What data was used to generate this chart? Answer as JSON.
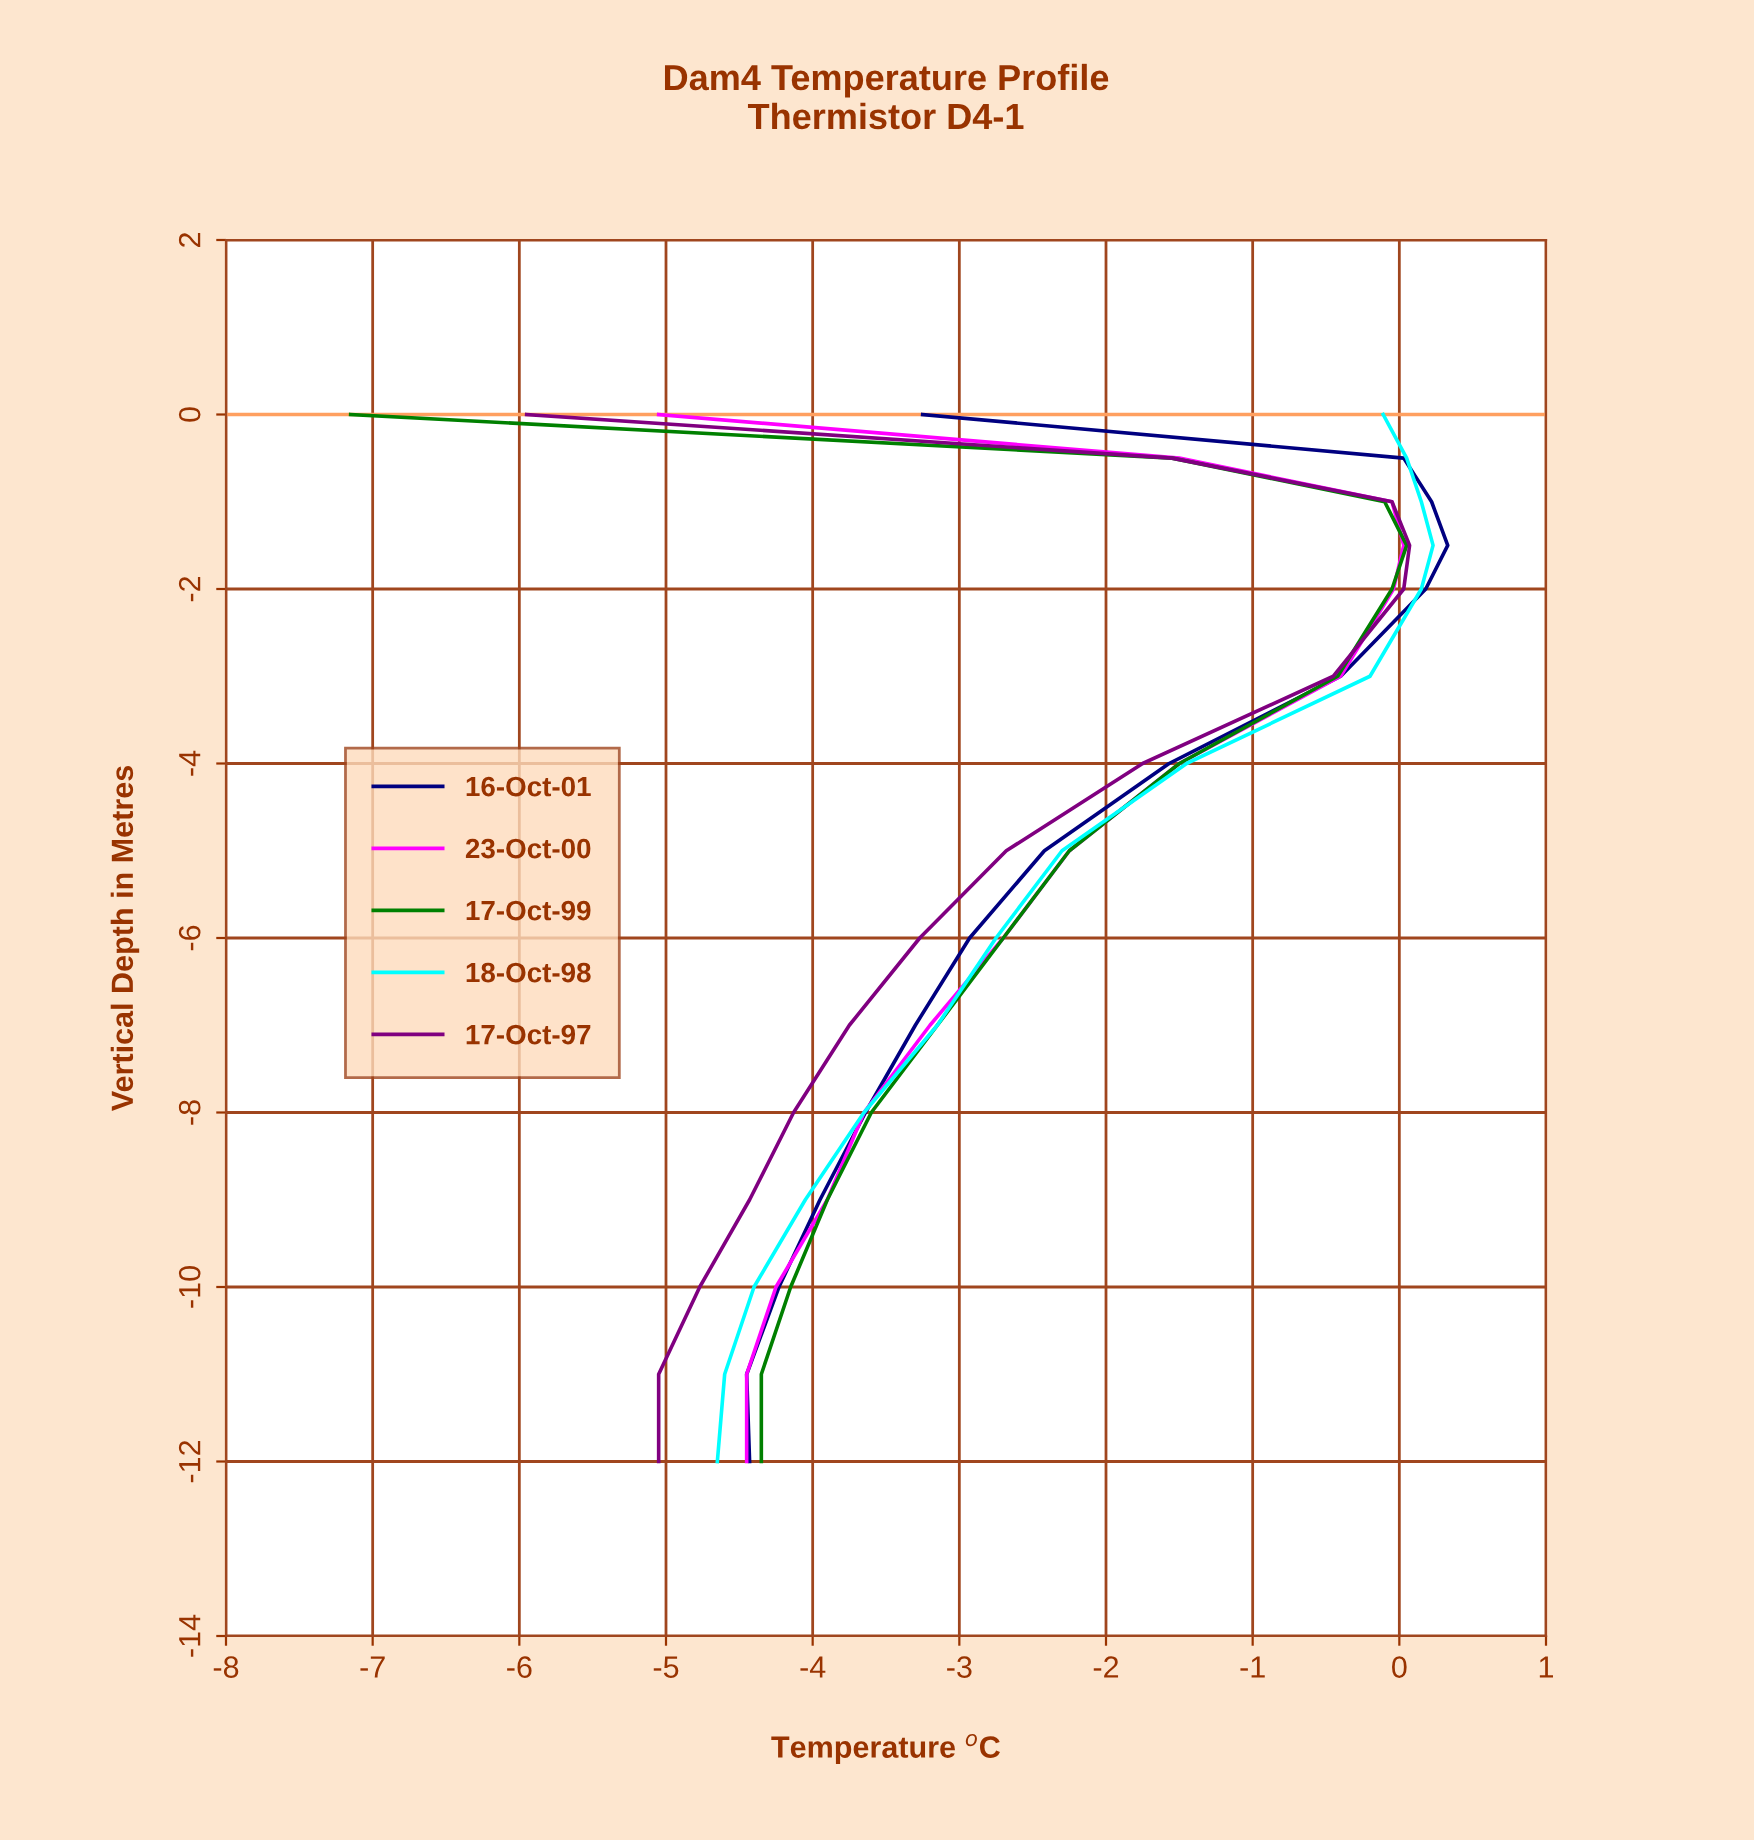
{
  "chart_data": {
    "type": "line",
    "title": "Dam4 Temperature Profile\nThermistor D4-1",
    "xlabel": "Temperature $^{o}$C",
    "ylabel": "Vertical Depth in Metres",
    "xlim": [
      -8,
      1
    ],
    "xticks": [
      -8,
      -7,
      -6,
      -5,
      -4,
      -3,
      -2,
      -1,
      0,
      1
    ],
    "ylim": [
      -14,
      2
    ],
    "yticks": [
      -14,
      -12,
      -10,
      -8,
      -6,
      -4,
      -2,
      0,
      2
    ],
    "grid": true,
    "legend": "left",
    "marker": "none",
    "line_style": "solid",
    "ref_lines": [
      {
        "axis": "y",
        "value": 0,
        "color": "#ffa060"
      }
    ],
    "series": [
      {
        "name": "16-Oct-01",
        "color": "#000080",
        "x": [
          -3.25,
          0.03,
          0.22,
          0.33,
          0.18,
          -0.4,
          -1.57,
          -2.42,
          -2.93,
          -3.3,
          -3.64,
          -3.95,
          -4.23,
          -4.45,
          -4.43
        ],
        "values": [
          0,
          -0.5,
          -1,
          -1.5,
          -2,
          -3,
          -4,
          -5,
          -6,
          -7,
          -8,
          -9,
          -10,
          -11,
          -12
        ]
      },
      {
        "name": "23-Oct-00",
        "color": "#ff00ff",
        "x": [
          -5.05,
          -1.5,
          -0.05,
          0.03,
          -0.04,
          -0.4,
          -1.5,
          -2.25,
          -2.7,
          -3.2,
          -3.65,
          -3.9,
          -4.25,
          -4.45,
          -4.45
        ],
        "values": [
          0,
          -0.5,
          -1,
          -1.5,
          -2,
          -3,
          -4,
          -5,
          -6,
          -7,
          -8,
          -9,
          -10,
          -11,
          -12
        ]
      },
      {
        "name": "17-Oct-99",
        "color": "#008000",
        "x": [
          -7.15,
          -1.55,
          -0.1,
          0.05,
          -0.05,
          -0.42,
          -1.5,
          -2.25,
          -2.7,
          -3.15,
          -3.6,
          -3.9,
          -4.15,
          -4.35,
          -4.35
        ],
        "values": [
          0,
          -0.5,
          -1,
          -1.5,
          -2,
          -3,
          -4,
          -5,
          -6,
          -7,
          -8,
          -9,
          -10,
          -11,
          -12
        ]
      },
      {
        "name": "18-Oct-98",
        "color": "#00ffff",
        "x": [
          -0.11,
          0.05,
          0.15,
          0.23,
          0.15,
          -0.2,
          -1.45,
          -2.3,
          -2.75,
          -3.15,
          -3.65,
          -4.05,
          -4.4,
          -4.6,
          -4.65
        ],
        "values": [
          0,
          -0.5,
          -1,
          -1.5,
          -2,
          -3,
          -4,
          -5,
          -6,
          -7,
          -8,
          -9,
          -10,
          -11,
          -12
        ]
      },
      {
        "name": "17-Oct-97",
        "color": "#800080",
        "x": [
          -5.95,
          -1.55,
          -0.05,
          0.07,
          0.03,
          -0.45,
          -1.75,
          -2.68,
          -3.27,
          -3.75,
          -4.13,
          -4.43,
          -4.77,
          -5.05,
          -5.05
        ],
        "values": [
          0,
          -0.5,
          -1,
          -1.5,
          -2,
          -3,
          -4,
          -5,
          -6,
          -7,
          -8,
          -9,
          -10,
          -11,
          -12
        ]
      }
    ]
  }
}
